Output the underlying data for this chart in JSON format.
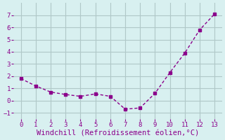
{
  "x": [
    0,
    1,
    2,
    3,
    4,
    5,
    6,
    7,
    8,
    9,
    10,
    11,
    12,
    13
  ],
  "y": [
    1.8,
    1.2,
    0.7,
    0.5,
    0.35,
    0.55,
    0.35,
    -0.7,
    -0.6,
    0.6,
    2.3,
    3.9,
    5.8,
    7.1
  ],
  "line_color": "#8B008B",
  "marker": "s",
  "marker_size": 3,
  "line_width": 1.0,
  "xlabel": "Windchill (Refroidissement éolien,°C)",
  "xlabel_color": "#8B008B",
  "xlabel_fontsize": 7.5,
  "bg_color": "#d8f0f0",
  "grid_color": "#b0c8c8",
  "tick_color": "#8B008B",
  "ylim": [
    -1.5,
    8
  ],
  "xlim": [
    -0.5,
    13.5
  ],
  "yticks": [
    -1,
    0,
    1,
    2,
    3,
    4,
    5,
    6,
    7
  ],
  "xticks": [
    0,
    1,
    2,
    3,
    4,
    5,
    6,
    7,
    8,
    9,
    10,
    11,
    12,
    13
  ]
}
